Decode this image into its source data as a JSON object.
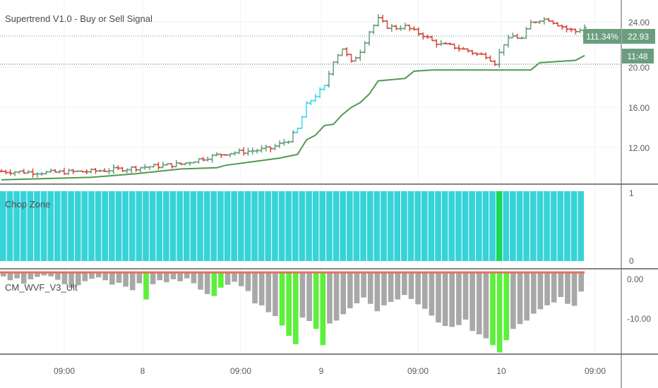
{
  "colors": {
    "up": "#6a9e7f",
    "down": "#d64b3c",
    "signal": "#3fd8ee",
    "supertrend": "#4f9a4f",
    "chop_main": "#36d3d8",
    "chop_highlight": "#16d85a",
    "wvf_normal": "#a8a8a8",
    "wvf_spike": "#5cf03a",
    "wvf_line": "#e2725b",
    "tag": "#6a9e7f",
    "grid": "#eef0f3",
    "divider": "#5c5c5c"
  },
  "main": {
    "title": "Supertrend V1.0 - Buy or Sell Signal",
    "price_labels": [
      "24.00",
      "20.00",
      "16.00",
      "12.00"
    ],
    "change_label": "111.34%",
    "last_price_label": "22.93",
    "countdown_label": "11:48"
  },
  "chop": {
    "title": "Chop Zone",
    "y_labels": [
      "1",
      "0"
    ],
    "highlight_index": 73,
    "bar_count": 86
  },
  "wvf": {
    "title": "CM_WVF_V3_Ult",
    "y_labels": [
      "0.00",
      "-10.00"
    ]
  },
  "time_labels": [
    "09:00",
    "8",
    "09:00",
    "9",
    "09:00",
    "10",
    "09:00"
  ],
  "chart_data": [
    {
      "type": "candlestick",
      "title": "Supertrend V1.0 - Buy or Sell Signal",
      "y_ticks": [
        12,
        16,
        20,
        24
      ],
      "ylim": [
        10.0,
        25.2
      ],
      "last_price": 22.93,
      "change_percent": 111.34,
      "close_path": [
        [
          0,
          11.0
        ],
        [
          10,
          10.9
        ],
        [
          20,
          11.0
        ],
        [
          30,
          11.3
        ],
        [
          40,
          11.6
        ],
        [
          44,
          12.0
        ],
        [
          50,
          12.5
        ],
        [
          56,
          12.7
        ],
        [
          60,
          12.9
        ],
        [
          64,
          13.6
        ],
        [
          66,
          14.5
        ],
        [
          68,
          16.5
        ],
        [
          70,
          17.3
        ],
        [
          72,
          18.0
        ],
        [
          74,
          20.2
        ],
        [
          76,
          21.2
        ],
        [
          78,
          20.0
        ],
        [
          80,
          21.0
        ],
        [
          82,
          22.6
        ],
        [
          84,
          23.6
        ],
        [
          86,
          23.0
        ],
        [
          88,
          22.9
        ],
        [
          90,
          23.0
        ],
        [
          92,
          22.6
        ],
        [
          94,
          22.3
        ],
        [
          96,
          21.8
        ],
        [
          98,
          21.5
        ],
        [
          100,
          21.4
        ],
        [
          104,
          21.0
        ],
        [
          106,
          20.7
        ],
        [
          108,
          20.6
        ],
        [
          110,
          20.0
        ],
        [
          112,
          21.6
        ],
        [
          114,
          22.2
        ],
        [
          116,
          22.0
        ],
        [
          118,
          23.3
        ],
        [
          120,
          23.6
        ],
        [
          122,
          23.6
        ],
        [
          124,
          23.2
        ],
        [
          126,
          22.8
        ],
        [
          128,
          22.6
        ],
        [
          130,
          22.93
        ]
      ],
      "supertrend_path": [
        [
          0,
          10.3
        ],
        [
          20,
          10.5
        ],
        [
          30,
          10.8
        ],
        [
          40,
          11.2
        ],
        [
          48,
          11.3
        ],
        [
          50,
          11.5
        ],
        [
          56,
          11.8
        ],
        [
          62,
          12.1
        ],
        [
          66,
          12.4
        ],
        [
          68,
          13.6
        ],
        [
          70,
          14.0
        ],
        [
          72,
          14.8
        ],
        [
          74,
          14.9
        ],
        [
          76,
          15.7
        ],
        [
          78,
          16.3
        ],
        [
          80,
          16.7
        ],
        [
          82,
          17.4
        ],
        [
          84,
          18.5
        ],
        [
          90,
          18.7
        ],
        [
          92,
          19.3
        ],
        [
          96,
          19.4
        ],
        [
          110,
          19.4
        ],
        [
          118,
          19.4
        ],
        [
          120,
          20.0
        ],
        [
          128,
          20.2
        ],
        [
          130,
          20.6
        ]
      ],
      "signal_ranges": [
        [
          66,
          68
        ],
        [
          68,
          72
        ]
      ]
    },
    {
      "type": "bar",
      "title": "Chop Zone",
      "ylim": [
        0,
        1
      ],
      "y_ticks": [
        0,
        1
      ],
      "bar_count": 86,
      "highlight_index": 73
    },
    {
      "type": "bar",
      "title": "CM_WVF_V3_Ult",
      "ylim": [
        -16.5,
        0.6
      ],
      "y_ticks": [
        0,
        -10
      ],
      "values": [
        -0.8,
        -1.6,
        -1.2,
        -2.3,
        -1.4,
        -0.9,
        -0.6,
        -0.8,
        -1.5,
        -2.4,
        -3.1,
        -2.6,
        -1.8,
        -1.3,
        -1.0,
        -1.6,
        -2.5,
        -2.1,
        -2.9,
        -3.6,
        -2.2,
        -5.5,
        -2.4,
        -1.6,
        -2.0,
        -1.4,
        -1.8,
        -1.2,
        -2.2,
        -3.5,
        -4.4,
        -4.8,
        -3.1,
        -2.5,
        -1.9,
        -2.8,
        -3.8,
        -6.3,
        -6.7,
        -8.1,
        -8.9,
        -10.8,
        -12.9,
        -14.6,
        -9.2,
        -9.9,
        -11.5,
        -14.8,
        -10.4,
        -9.8,
        -8.5,
        -7.3,
        -6.3,
        -5.1,
        -6.4,
        -7.9,
        -6.7,
        -6.0,
        -5.5,
        -4.6,
        -5.4,
        -6.5,
        -7.4,
        -8.8,
        -10.2,
        -10.9,
        -11.1,
        -10.7,
        -9.6,
        -11.9,
        -12.6,
        -13.4,
        -14.8,
        -16.3,
        -13.8,
        -11.5,
        -10.5,
        -9.8,
        -8.4,
        -7.5,
        -6.7,
        -6.1,
        -5.0,
        -6.4,
        -6.8,
        -3.9
      ],
      "spike_indices": [
        21,
        31,
        32,
        41,
        42,
        43,
        46,
        47,
        72,
        73,
        74
      ]
    }
  ]
}
